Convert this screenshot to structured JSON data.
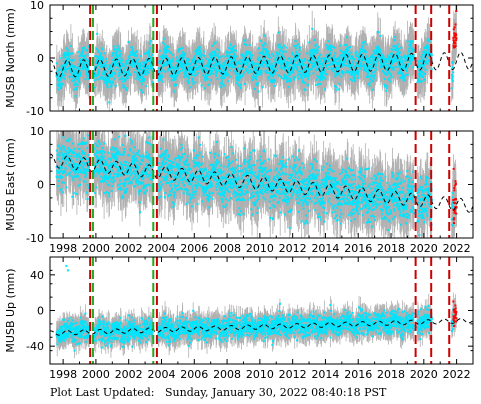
{
  "footer": {
    "label": "Plot Last Updated:",
    "value": "Sunday, January 30, 2022 08:40:18 PST"
  },
  "colors": {
    "data": "#00e5ff",
    "errorbar": "#b0b0b0",
    "model": "#000000",
    "recent": "#ff0000",
    "event_red": "#cc0000",
    "event_green": "#22aa22"
  },
  "chart_data": [
    {
      "type": "scatter",
      "ylabel": "MUSB North (mm)",
      "xlim": [
        1997.2,
        2023.0
      ],
      "ylim": [
        -10,
        10
      ],
      "yticks": [
        -10,
        0,
        10
      ],
      "xticks": [
        1998,
        2000,
        2002,
        2004,
        2006,
        2008,
        2010,
        2012,
        2014,
        2016,
        2018,
        2020,
        2022
      ],
      "show_x_tick_labels": false,
      "data_spans": [
        [
          1997.6,
          1999.6
        ],
        [
          1999.9,
          2003.5
        ],
        [
          2003.8,
          2019.4
        ],
        [
          2019.6,
          2020.5
        ],
        [
          2021.7,
          2022.0
        ]
      ],
      "model": {
        "offset": -2.0,
        "trend": 0.06,
        "amplitude": 1.6
      },
      "scatter_sd": 1.5,
      "error_sd": 3.0,
      "recent_span": [
        2021.8,
        2022.0
      ],
      "recent_shift": 5.5,
      "events": [
        {
          "year": 1999.65,
          "color": "red"
        },
        {
          "year": 1999.82,
          "color": "green"
        },
        {
          "year": 2003.5,
          "color": "green"
        },
        {
          "year": 2003.72,
          "color": "red"
        },
        {
          "year": 2019.5,
          "color": "red"
        },
        {
          "year": 2020.45,
          "color": "red"
        },
        {
          "year": 2021.55,
          "color": "red"
        }
      ]
    },
    {
      "type": "scatter",
      "ylabel": "MUSB East (mm)",
      "xlim": [
        1997.2,
        2023.0
      ],
      "ylim": [
        -10,
        10
      ],
      "yticks": [
        -10,
        0,
        10
      ],
      "xticks": [
        1998,
        2000,
        2002,
        2004,
        2006,
        2008,
        2010,
        2012,
        2014,
        2016,
        2018,
        2020,
        2022
      ],
      "show_x_tick_labels": true,
      "data_spans": [
        [
          1997.6,
          1999.6
        ],
        [
          1999.9,
          2003.5
        ],
        [
          2003.8,
          2019.4
        ],
        [
          2019.6,
          2020.5
        ],
        [
          2021.7,
          2022.0
        ]
      ],
      "model": {
        "offset": 4.2,
        "trend": -0.33,
        "amplitude": 1.2
      },
      "scatter_sd": 2.2,
      "error_sd": 3.5,
      "recent_span": [
        2021.8,
        2022.0
      ],
      "recent_shift": 1.0,
      "events": [
        {
          "year": 1999.65,
          "color": "red"
        },
        {
          "year": 1999.82,
          "color": "green"
        },
        {
          "year": 2003.5,
          "color": "green"
        },
        {
          "year": 2003.72,
          "color": "red"
        },
        {
          "year": 2019.5,
          "color": "red"
        },
        {
          "year": 2020.45,
          "color": "red"
        },
        {
          "year": 2021.55,
          "color": "red"
        }
      ]
    },
    {
      "type": "scatter",
      "ylabel": "MUSB Up (mm)",
      "xlim": [
        1997.2,
        2023.0
      ],
      "ylim": [
        -60,
        60
      ],
      "yticks": [
        -40,
        0,
        40
      ],
      "xticks": [
        1998,
        2000,
        2002,
        2004,
        2006,
        2008,
        2010,
        2012,
        2014,
        2016,
        2018,
        2020,
        2022
      ],
      "show_x_tick_labels": true,
      "data_spans": [
        [
          1997.6,
          1999.6
        ],
        [
          1999.9,
          2003.5
        ],
        [
          2003.8,
          2019.4
        ],
        [
          2019.6,
          2020.5
        ],
        [
          2021.7,
          2022.0
        ]
      ],
      "model": {
        "offset": -25.0,
        "trend": 0.55,
        "amplitude": 2.5
      },
      "scatter_sd": 6.0,
      "error_sd": 10.0,
      "recent_span": [
        2021.8,
        2022.0
      ],
      "recent_shift": 8.0,
      "outlier_points": [
        [
          1998.2,
          50
        ],
        [
          1998.3,
          45
        ]
      ],
      "events": [
        {
          "year": 1999.65,
          "color": "red"
        },
        {
          "year": 1999.82,
          "color": "green"
        },
        {
          "year": 2003.5,
          "color": "green"
        },
        {
          "year": 2003.72,
          "color": "red"
        },
        {
          "year": 2019.5,
          "color": "red"
        },
        {
          "year": 2020.45,
          "color": "red"
        },
        {
          "year": 2021.55,
          "color": "red"
        }
      ]
    }
  ]
}
